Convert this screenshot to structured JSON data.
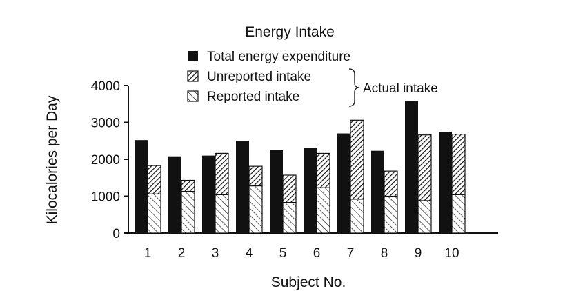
{
  "chart_data": {
    "type": "bar",
    "title": "Energy Intake",
    "xlabel": "Subject No.",
    "ylabel": "Kilocalories per Day",
    "ylim": [
      0,
      4000
    ],
    "yticks": [
      0,
      1000,
      2000,
      3000,
      4000
    ],
    "categories": [
      "1",
      "2",
      "3",
      "4",
      "5",
      "6",
      "7",
      "8",
      "9",
      "10"
    ],
    "series": [
      {
        "name": "Total energy expenditure",
        "values": [
          2520,
          2080,
          2100,
          2500,
          2250,
          2300,
          2700,
          2230,
          3580,
          2740
        ]
      },
      {
        "name": "Unreported intake",
        "values": [
          770,
          300,
          1120,
          530,
          740,
          930,
          2140,
          680,
          1780,
          1640
        ]
      },
      {
        "name": "Reported intake",
        "values": [
          1060,
          1130,
          1040,
          1280,
          830,
          1230,
          920,
          1000,
          880,
          1040
        ]
      }
    ],
    "legend_group_label": "Actual intake",
    "legend_position": "top"
  }
}
